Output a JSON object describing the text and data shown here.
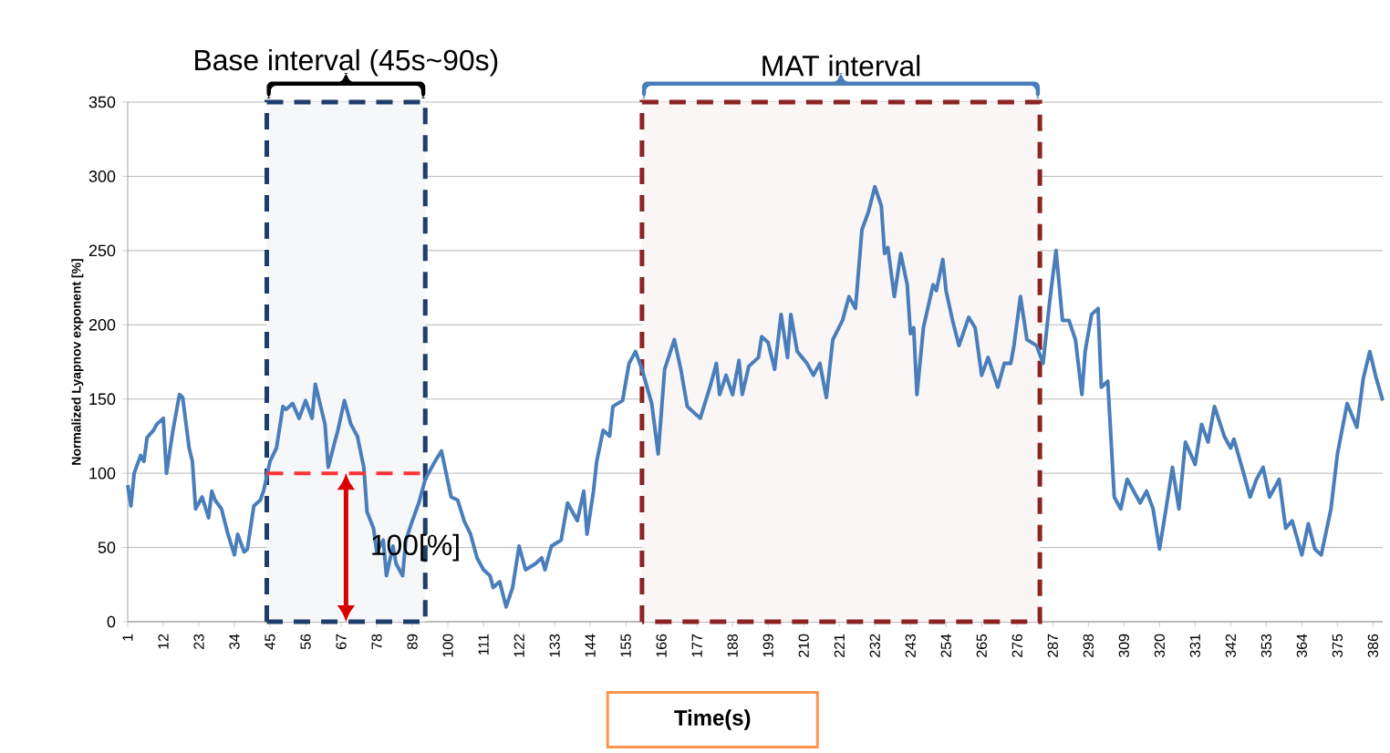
{
  "chart_data": {
    "type": "line",
    "xlabel": "Time(s)",
    "ylabel": "Normalized Lyapnov exponent [%]",
    "series": [
      {
        "color": "#4a7ebb",
        "x": [
          1,
          2,
          3,
          5,
          6,
          7,
          9,
          10,
          12,
          13,
          15,
          17,
          18,
          20,
          21,
          22,
          24,
          26,
          27,
          28,
          30,
          32,
          34,
          35,
          37,
          38,
          40,
          42,
          43,
          45,
          47,
          49,
          50,
          52,
          54,
          56,
          58,
          59,
          62,
          63,
          65,
          66,
          68,
          70,
          72,
          74,
          75,
          77,
          78,
          80,
          81,
          83,
          84,
          86,
          87,
          89,
          91,
          93,
          94,
          96,
          98,
          101,
          103,
          105,
          107,
          109,
          111,
          113,
          114,
          116,
          118,
          120,
          122,
          124,
          127,
          129,
          130,
          132,
          135,
          137,
          140,
          142,
          143,
          145,
          146,
          148,
          150,
          151,
          154,
          156,
          158,
          160,
          163,
          165,
          167,
          170,
          172,
          174,
          176,
          178,
          181,
          183,
          184,
          186,
          188,
          190,
          191,
          193,
          196,
          197,
          199,
          201,
          203,
          205,
          206,
          208,
          211,
          213,
          215,
          217,
          219,
          222,
          224,
          226,
          228,
          230,
          232,
          234,
          235,
          236,
          238,
          240,
          242,
          243,
          244,
          245,
          247,
          250,
          251,
          253,
          254,
          256,
          258,
          261,
          263,
          265,
          267,
          270,
          272,
          274,
          275,
          277,
          279,
          282,
          284,
          286,
          288,
          290,
          292,
          294,
          296,
          297,
          299,
          301,
          302,
          304,
          306,
          308,
          310,
          313,
          314,
          316,
          318,
          320,
          322,
          324,
          326,
          328,
          331,
          333,
          335,
          337,
          340,
          342,
          343,
          346,
          348,
          350,
          352,
          354,
          357,
          359,
          361,
          364,
          366,
          368,
          370,
          373,
          375,
          378,
          381,
          383,
          385,
          387,
          389
        ],
        "values": [
          92,
          78,
          100,
          112,
          108,
          124,
          129,
          133,
          137,
          100,
          129,
          153,
          151,
          117,
          108,
          76,
          84,
          70,
          88,
          82,
          76,
          59,
          45,
          59,
          47,
          49,
          78,
          82,
          88,
          108,
          117,
          145,
          143,
          147,
          137,
          149,
          137,
          160,
          133,
          104,
          121,
          129,
          149,
          133,
          125,
          104,
          74,
          63,
          47,
          55,
          31,
          51,
          39,
          31,
          55,
          68,
          80,
          96,
          100,
          108,
          115,
          84,
          82,
          68,
          59,
          43,
          35,
          31,
          23,
          27,
          10,
          23,
          51,
          35,
          39,
          43,
          35,
          51,
          55,
          80,
          68,
          88,
          59,
          88,
          108,
          129,
          125,
          145,
          149,
          174,
          182,
          170,
          147,
          113,
          170,
          190,
          170,
          145,
          141,
          137,
          158,
          174,
          153,
          166,
          153,
          176,
          153,
          172,
          178,
          192,
          188,
          170,
          207,
          178,
          207,
          182,
          174,
          166,
          174,
          151,
          190,
          203,
          219,
          211,
          264,
          276,
          293,
          280,
          248,
          252,
          219,
          248,
          227,
          194,
          198,
          153,
          198,
          227,
          223,
          244,
          223,
          203,
          186,
          205,
          198,
          166,
          178,
          158,
          174,
          174,
          186,
          219,
          190,
          186,
          174,
          215,
          250,
          203,
          203,
          190,
          153,
          182,
          207,
          211,
          158,
          162,
          84,
          76,
          96,
          84,
          80,
          88,
          76,
          49,
          76,
          104,
          76,
          121,
          106,
          133,
          121,
          145,
          125,
          117,
          123,
          100,
          84,
          96,
          104,
          84,
          96,
          63,
          68,
          45,
          66,
          49,
          45,
          76,
          113,
          147,
          131,
          164,
          182,
          164,
          149
        ]
      }
    ],
    "xlim": [
      1,
      389
    ],
    "xticks": [
      1,
      12,
      23,
      34,
      45,
      56,
      67,
      78,
      89,
      100,
      111,
      122,
      133,
      144,
      155,
      166,
      177,
      188,
      199,
      210,
      221,
      232,
      243,
      254,
      265,
      276,
      287,
      298,
      309,
      320,
      331,
      342,
      353,
      364,
      375,
      386
    ],
    "ylim": [
      0,
      350
    ],
    "yticks": [
      0,
      50,
      100,
      150,
      200,
      250,
      300,
      350
    ],
    "grid": "y",
    "marker": "none",
    "line_style": "solid",
    "bands": [
      {
        "axis": "x",
        "from": 44,
        "to": 93,
        "label": "Base interval (45s~90s)",
        "color": "#1f3d6b"
      },
      {
        "axis": "x",
        "from": 160,
        "to": 283,
        "label": "MAT interval",
        "color": "#8b2323"
      }
    ],
    "ref_lines": [
      {
        "axis": "y",
        "value": 100,
        "label": "100[%]",
        "color": "#ff3333",
        "line_style": "dashed"
      }
    ]
  }
}
